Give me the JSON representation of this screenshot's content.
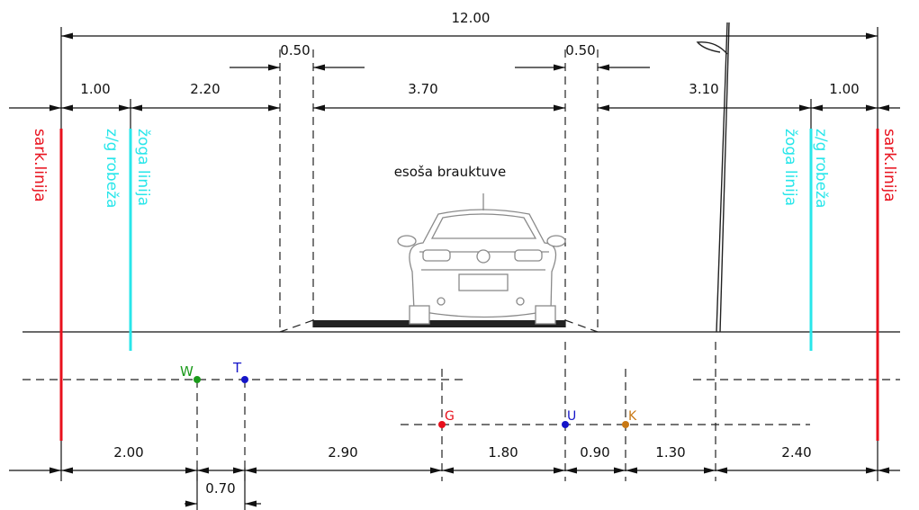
{
  "dimensions": [
    "12.00",
    "0.50",
    "0.50",
    "1.00",
    "2.20",
    "3.70",
    "3.10",
    "1.00",
    "2.00",
    "0.70",
    "2.90",
    "1.80",
    "0.90",
    "1.30",
    "2.40"
  ],
  "line_labels": [
    "sark.linija",
    "z/g robeža",
    "žoga linija",
    "žoga linija",
    "z/g robeža",
    "sark.linija"
  ],
  "roadway_label": "esoša brauktuve",
  "points": [
    "W",
    "T",
    "G",
    "U",
    "K"
  ]
}
